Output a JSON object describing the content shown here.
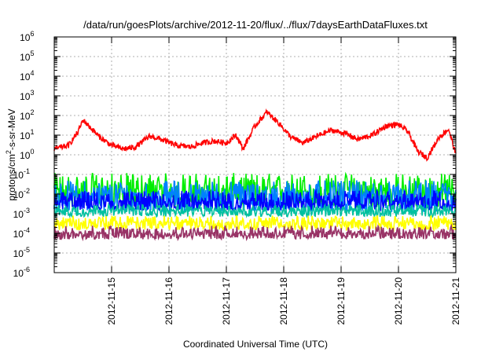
{
  "chart_data": {
    "type": "line",
    "title": "/data/run/goesPlots/archive/2012-11-20/flux/../flux/7daysEarthDataFluxes.txt",
    "xlabel": "Coordinated Universal Time (UTC)",
    "ylabel": {
      "prefix": "protons/cm",
      "superscript": "2",
      "suffix": "-s-sr-MeV"
    },
    "xlim": [
      "2012-11-14",
      "2012-11-21"
    ],
    "ylim": [
      1e-06,
      1000000.0
    ],
    "yscale": "log",
    "grid": true,
    "x_ticks": [
      "2012-11-15",
      "2012-11-16",
      "2012-11-17",
      "2012-11-18",
      "2012-11-19",
      "2012-11-20",
      "2012-11-21"
    ],
    "y_ticks": [
      {
        "base": "10",
        "exp": "-6",
        "value": 1e-06
      },
      {
        "base": "10",
        "exp": "-5",
        "value": 1e-05
      },
      {
        "base": "10",
        "exp": "-4",
        "value": 0.0001
      },
      {
        "base": "10",
        "exp": "-3",
        "value": 0.001
      },
      {
        "base": "10",
        "exp": "-2",
        "value": 0.01
      },
      {
        "base": "10",
        "exp": "-1",
        "value": 0.1
      },
      {
        "base": "10",
        "exp": "0",
        "value": 1
      },
      {
        "base": "10",
        "exp": "1",
        "value": 10
      },
      {
        "base": "10",
        "exp": "2",
        "value": 100
      },
      {
        "base": "10",
        "exp": "3",
        "value": 1000
      },
      {
        "base": "10",
        "exp": "4",
        "value": 10000
      },
      {
        "base": "10",
        "exp": "5",
        "value": 100000
      },
      {
        "base": "10",
        "exp": "6",
        "value": 1000000
      }
    ],
    "series": [
      {
        "color": "#ff0000",
        "x": [
          "2012-11-14 00:00",
          "2012-11-14 06:00",
          "2012-11-14 10:00",
          "2012-11-14 12:00",
          "2012-11-14 15:00",
          "2012-11-14 19:00",
          "2012-11-15 00:00",
          "2012-11-15 05:00",
          "2012-11-15 10:00",
          "2012-11-15 16:00",
          "2012-11-15 21:00",
          "2012-11-16 03:00",
          "2012-11-16 09:00",
          "2012-11-16 14:00",
          "2012-11-16 19:00",
          "2012-11-17 00:00",
          "2012-11-17 04:00",
          "2012-11-17 07:00",
          "2012-11-17 12:00",
          "2012-11-17 17:00",
          "2012-11-17 22:00",
          "2012-11-18 03:00",
          "2012-11-18 08:00",
          "2012-11-18 14:00",
          "2012-11-18 20:00",
          "2012-11-19 02:00",
          "2012-11-19 07:00",
          "2012-11-19 13:00",
          "2012-11-19 19:00",
          "2012-11-20 00:00",
          "2012-11-20 04:00",
          "2012-11-20 08:00",
          "2012-11-20 12:00",
          "2012-11-20 17:00",
          "2012-11-20 21:00",
          "2012-11-21 00:00"
        ],
        "y": [
          2,
          3,
          15,
          60,
          25,
          8,
          3,
          2,
          2.5,
          9,
          6,
          3,
          2.5,
          4,
          5,
          4,
          10,
          2,
          30,
          150,
          40,
          8,
          4,
          9,
          18,
          12,
          6,
          10,
          30,
          35,
          15,
          1.5,
          0.7,
          8,
          20,
          1
        ]
      },
      {
        "color": "#00ee00",
        "x": [
          "2012-11-14 00:00",
          "2012-11-21 00:00"
        ],
        "y": [
          0.015,
          0.015
        ],
        "y_low": [
          0.002,
          0.002
        ],
        "y_high": [
          0.12,
          0.12
        ]
      },
      {
        "color": "#0080ff",
        "x": [
          "2012-11-14 00:00",
          "2012-11-21 00:00"
        ],
        "y": [
          0.008,
          0.008
        ],
        "y_low": [
          0.0012,
          0.0012
        ],
        "y_high": [
          0.05,
          0.05
        ]
      },
      {
        "color": "#0000ff",
        "x": [
          "2012-11-14 00:00",
          "2012-11-21 00:00"
        ],
        "y": [
          0.004,
          0.004
        ],
        "y_low": [
          0.0015,
          0.0015
        ],
        "y_high": [
          0.015,
          0.015
        ]
      },
      {
        "color": "#00c0a0",
        "x": [
          "2012-11-14 00:00",
          "2012-11-21 00:00"
        ],
        "y": [
          0.0015,
          0.0015
        ],
        "y_low": [
          0.0007,
          0.0007
        ],
        "y_high": [
          0.003,
          0.003
        ]
      },
      {
        "color": "#ffff00",
        "x": [
          "2012-11-14 00:00",
          "2012-11-21 00:00"
        ],
        "y": [
          0.00035,
          0.00035
        ],
        "y_low": [
          0.00015,
          0.00015
        ],
        "y_high": [
          0.0008,
          0.0008
        ]
      },
      {
        "color": "#993366",
        "x": [
          "2012-11-14 00:00",
          "2012-11-21 00:00"
        ],
        "y": [
          0.0001,
          0.0001
        ],
        "y_low": [
          5e-05,
          5e-05
        ],
        "y_high": [
          0.00025,
          0.00025
        ]
      }
    ]
  }
}
